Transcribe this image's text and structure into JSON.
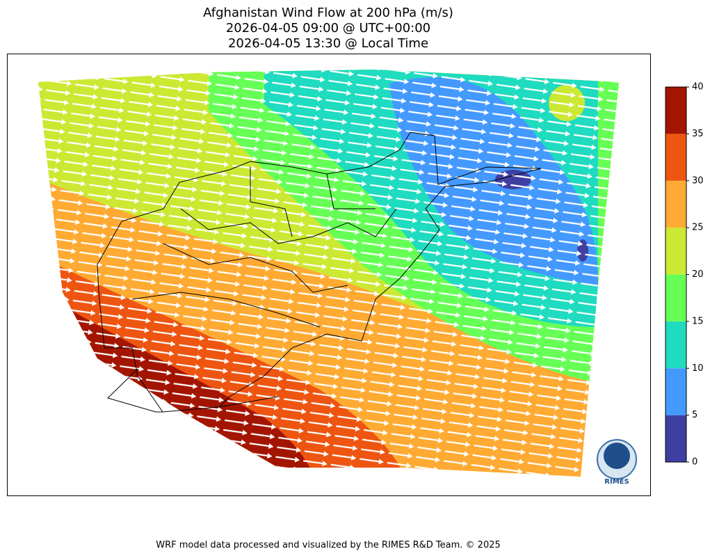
{
  "header": {
    "title_lines": [
      "Afghanistan Wind Flow at 200 hPa (m/s)",
      "2026-04-05 09:00 @ UTC+00:00",
      "2026-04-05 13:30 @ Local Time"
    ]
  },
  "colorbar": {
    "ticks": [
      0,
      5,
      10,
      15,
      20,
      25,
      30,
      35,
      40
    ],
    "colors": [
      "#3f3fa3",
      "#4499ff",
      "#1fdbbf",
      "#66ff55",
      "#cce833",
      "#ffaa33",
      "#ee5511",
      "#a31500"
    ]
  },
  "logo": {
    "text": "RIMES"
  },
  "footer": "WRF model data processed and visualized by the RIMES R&D Team. © 2025"
}
